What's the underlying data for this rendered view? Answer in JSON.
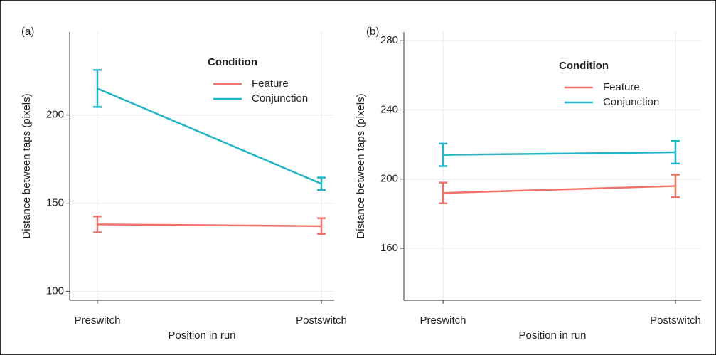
{
  "chart_data": [
    {
      "type": "line",
      "label": "(a)",
      "x_label": "Position in run",
      "y_label": "Distance between taps (pixels)",
      "categories": [
        "Preswitch",
        "Postswitch"
      ],
      "ylim": [
        95,
        247
      ],
      "yticks": [
        100,
        150,
        200
      ],
      "grid": true,
      "legend_title": "Condition",
      "series": [
        {
          "name": "Feature",
          "color": "#f0736a",
          "values": [
            138,
            137
          ],
          "errors": [
            4.5,
            4.5
          ]
        },
        {
          "name": "Conjunction",
          "color": "#22b5c4",
          "values": [
            215,
            161
          ],
          "errors": [
            10.5,
            3.5
          ]
        }
      ]
    },
    {
      "type": "line",
      "label": "(b)",
      "x_label": "Position in run",
      "y_label": "Distance between taps (pixels)",
      "categories": [
        "Preswitch",
        "Postswitch"
      ],
      "ylim": [
        130,
        285
      ],
      "yticks": [
        160,
        200,
        240,
        280
      ],
      "grid": true,
      "legend_title": "Condition",
      "series": [
        {
          "name": "Feature",
          "color": "#f0736a",
          "values": [
            192,
            196
          ],
          "errors": [
            6,
            6.5
          ]
        },
        {
          "name": "Conjunction",
          "color": "#22b5c4",
          "values": [
            214,
            215.5
          ],
          "errors": [
            6.5,
            6.5
          ]
        }
      ]
    }
  ]
}
